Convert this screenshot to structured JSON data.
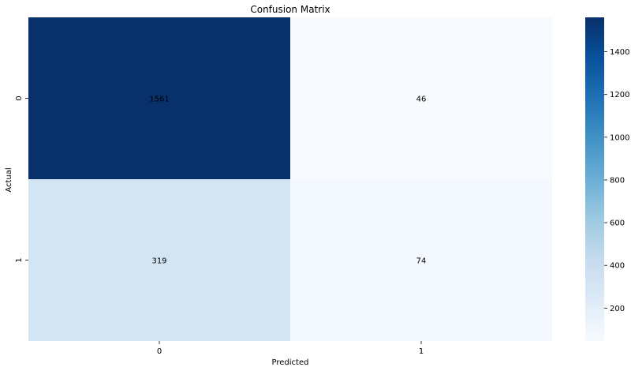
{
  "chart_data": {
    "type": "heatmap",
    "title": "Confusion Matrix",
    "xlabel": "Predicted",
    "ylabel": "Actual",
    "x_categories": [
      "0",
      "1"
    ],
    "y_categories": [
      "0",
      "1"
    ],
    "values": [
      [
        1561,
        46
      ],
      [
        319,
        74
      ]
    ],
    "cell_labels": [
      [
        "1561",
        "46"
      ],
      [
        "319",
        "74"
      ]
    ],
    "colorscale": "Blues",
    "colorbar": {
      "range": [
        46,
        1561
      ],
      "ticks": [
        200,
        400,
        600,
        800,
        1000,
        1200,
        1400
      ],
      "tick_labels": [
        "200",
        "400",
        "600",
        "800",
        "1000",
        "1200",
        "1400"
      ]
    }
  }
}
